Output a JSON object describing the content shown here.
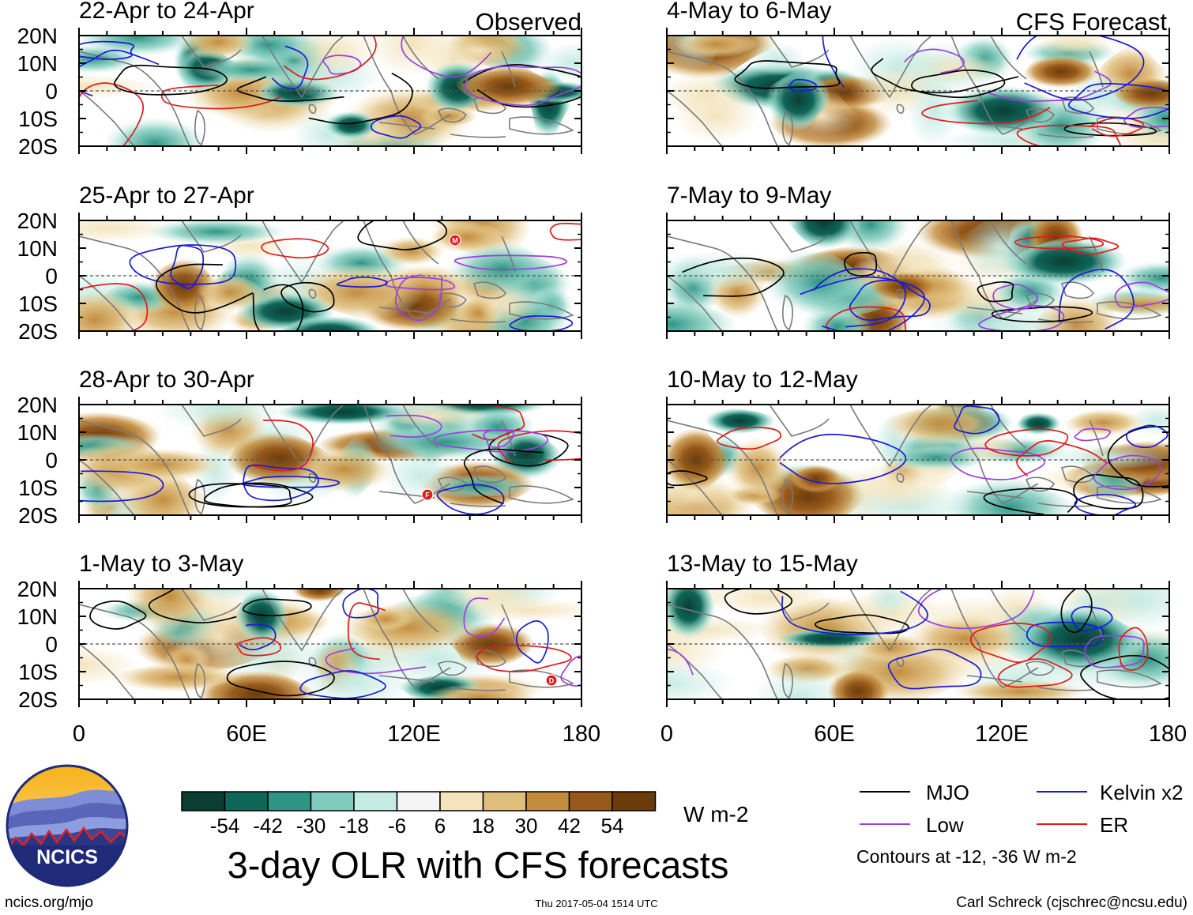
{
  "column_headers": {
    "left": "Observed",
    "right": "CFS Forecast"
  },
  "panels": {
    "left": [
      {
        "title": "22-Apr to 24-Apr"
      },
      {
        "title": "25-Apr to 27-Apr"
      },
      {
        "title": "28-Apr to 30-Apr"
      },
      {
        "title": "1-May to 3-May"
      }
    ],
    "right": [
      {
        "title": "4-May to 6-May"
      },
      {
        "title": "7-May to 9-May"
      },
      {
        "title": "10-May to 12-May"
      },
      {
        "title": "13-May to 15-May"
      }
    ]
  },
  "lat_ticks": [
    "20N",
    "10N",
    "0",
    "10S",
    "20S"
  ],
  "lon_ticks": [
    "0",
    "60E",
    "120E",
    "180"
  ],
  "colorbar": {
    "colors": [
      "#0b3d33",
      "#0e6659",
      "#2e9585",
      "#7fcbbd",
      "#c6ebe3",
      "#f5f5f5",
      "#f3e4bd",
      "#dfbe7c",
      "#c28c3e",
      "#985a1b",
      "#6a3c0c"
    ],
    "labels": [
      "-54",
      "-42",
      "-30",
      "-18",
      "-6",
      "6",
      "18",
      "30",
      "42",
      "54"
    ],
    "units": "W m-2"
  },
  "title": "3-day OLR with CFS forecasts",
  "legend": {
    "items": [
      {
        "label": "MJO",
        "color": "#000000"
      },
      {
        "label": "Kelvin x2",
        "color": "#1a1ad6"
      },
      {
        "label": "Low",
        "color": "#9b3fe0"
      },
      {
        "label": "ER",
        "color": "#e01a1a"
      }
    ],
    "note": "Contours at -12, -36 W m-2"
  },
  "logo": {
    "text": "NCICS"
  },
  "footer": {
    "left": "ncics.org/mjo",
    "center": "Thu 2017-05-04 1514 UTC",
    "right": "Carl Schreck (cjschrec@ncsu.edu)"
  },
  "storm_markers": [
    {
      "panel": "left-1",
      "letter": "M"
    },
    {
      "panel": "left-2",
      "letter": "F"
    },
    {
      "panel": "left-3",
      "letter": "D"
    }
  ]
}
